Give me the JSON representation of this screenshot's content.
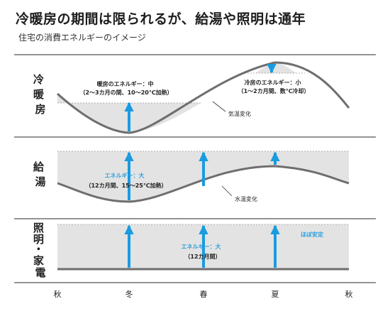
{
  "title": "冷暖房の期間は限られるが、給湯や照明は通年",
  "subtitle": "住宅の消費エネルギーのイメージ",
  "rows": [
    {
      "label_lines": [
        "冷",
        "暖",
        "房"
      ],
      "heating_lines": [
        "暖房のエネルギー：中",
        "（2〜3カ月の間、10〜20℃加熱）"
      ],
      "cooling_lines": [
        "冷房のエネルギー：小",
        "（1〜2カ月間、数℃冷却）"
      ],
      "curve_label": "気温変化"
    },
    {
      "label_lines": [
        "給",
        "湯"
      ],
      "energy_lines": [
        "エネルギー：大",
        "（12カ月間、15〜25℃加熱）"
      ],
      "curve_label": "水温変化"
    },
    {
      "label_lines": [
        "照",
        "明",
        "・",
        "家",
        "電"
      ],
      "energy_lines": [
        "エネルギー：大",
        "（12カ月間）"
      ],
      "stable_label": "ほぼ安定"
    }
  ],
  "seasons": [
    "秋",
    "冬",
    "春",
    "夏",
    "秋"
  ],
  "colors": {
    "arrow": "#1a9be0",
    "curve": "#6e6e6e",
    "fill": "#e3e3e3",
    "divider": "#555555",
    "blue_text": "#2a9fe0"
  }
}
